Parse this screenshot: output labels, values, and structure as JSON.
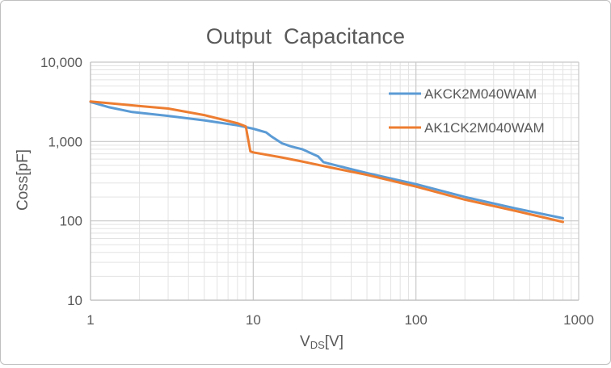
{
  "chart_data": {
    "type": "line",
    "title": "Output  Capacitance",
    "xlabel_main": "V",
    "xlabel_sub": "DS",
    "xlabel_suffix": "[V]",
    "ylabel": "Coss[pF]",
    "x_scale": "log",
    "y_scale": "log",
    "xlim": [
      1,
      1000
    ],
    "ylim": [
      10,
      10000
    ],
    "x_ticks": [
      1,
      10,
      100,
      1000
    ],
    "x_tick_labels": [
      "1",
      "10",
      "100",
      "1000"
    ],
    "y_ticks": [
      10,
      100,
      1000,
      10000
    ],
    "y_tick_labels": [
      "10",
      "100",
      "1,000",
      "10,000"
    ],
    "grid": true,
    "legend_position": "right",
    "series": [
      {
        "name": "AKCK2M040WAM",
        "color": "#5b9bd5",
        "points": [
          [
            1,
            3150
          ],
          [
            1.3,
            2700
          ],
          [
            1.8,
            2350
          ],
          [
            3,
            2100
          ],
          [
            5,
            1850
          ],
          [
            8,
            1600
          ],
          [
            10,
            1450
          ],
          [
            12,
            1300
          ],
          [
            13,
            1150
          ],
          [
            15,
            950
          ],
          [
            17,
            870
          ],
          [
            20,
            800
          ],
          [
            25,
            650
          ],
          [
            27,
            550
          ],
          [
            30,
            520
          ],
          [
            50,
            400
          ],
          [
            100,
            290
          ],
          [
            200,
            200
          ],
          [
            400,
            145
          ],
          [
            800,
            108
          ]
        ]
      },
      {
        "name": "AK1CK2M040WAM",
        "color": "#ed7d31",
        "points": [
          [
            1,
            3200
          ],
          [
            2,
            2800
          ],
          [
            3,
            2600
          ],
          [
            5,
            2150
          ],
          [
            8,
            1700
          ],
          [
            9,
            1550
          ],
          [
            9.6,
            750
          ],
          [
            10,
            730
          ],
          [
            15,
            630
          ],
          [
            20,
            560
          ],
          [
            30,
            470
          ],
          [
            50,
            380
          ],
          [
            100,
            270
          ],
          [
            200,
            185
          ],
          [
            400,
            135
          ],
          [
            800,
            97
          ]
        ]
      }
    ]
  }
}
